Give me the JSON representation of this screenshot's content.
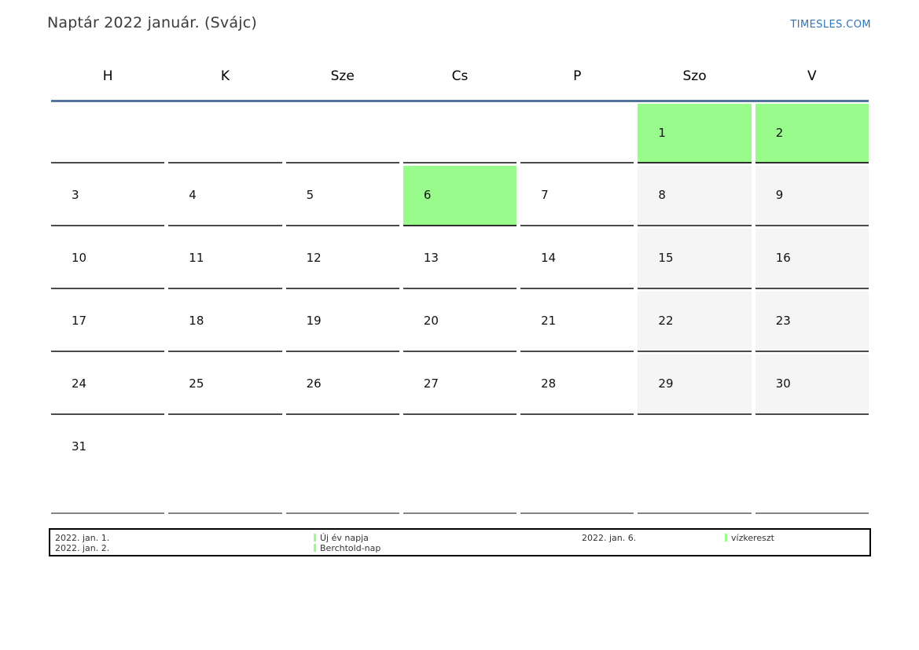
{
  "page": {
    "title": "Naptár 2022 január. (Svájc)",
    "site_link": "TIMESLES.COM"
  },
  "colors": {
    "holiday_green": "#98fb8b",
    "weekend_gray": "#f5f5f5",
    "header_line_blue": "#54739f",
    "link_blue": "#2e75bb"
  },
  "calendar": {
    "day_headers": [
      "H",
      "K",
      "Sze",
      "Cs",
      "P",
      "Szo",
      "V"
    ],
    "weeks": [
      [
        {
          "day": "",
          "type": "empty"
        },
        {
          "day": "",
          "type": "empty"
        },
        {
          "day": "",
          "type": "empty"
        },
        {
          "day": "",
          "type": "empty"
        },
        {
          "day": "",
          "type": "empty"
        },
        {
          "day": "1",
          "type": "holiday"
        },
        {
          "day": "2",
          "type": "holiday"
        }
      ],
      [
        {
          "day": "3",
          "type": "normal"
        },
        {
          "day": "4",
          "type": "normal"
        },
        {
          "day": "5",
          "type": "normal"
        },
        {
          "day": "6",
          "type": "holiday"
        },
        {
          "day": "7",
          "type": "normal"
        },
        {
          "day": "8",
          "type": "weekend"
        },
        {
          "day": "9",
          "type": "weekend"
        }
      ],
      [
        {
          "day": "10",
          "type": "normal"
        },
        {
          "day": "11",
          "type": "normal"
        },
        {
          "day": "12",
          "type": "normal"
        },
        {
          "day": "13",
          "type": "normal"
        },
        {
          "day": "14",
          "type": "normal"
        },
        {
          "day": "15",
          "type": "weekend"
        },
        {
          "day": "16",
          "type": "weekend"
        }
      ],
      [
        {
          "day": "17",
          "type": "normal"
        },
        {
          "day": "18",
          "type": "normal"
        },
        {
          "day": "19",
          "type": "normal"
        },
        {
          "day": "20",
          "type": "normal"
        },
        {
          "day": "21",
          "type": "normal"
        },
        {
          "day": "22",
          "type": "weekend"
        },
        {
          "day": "23",
          "type": "weekend"
        }
      ],
      [
        {
          "day": "24",
          "type": "normal"
        },
        {
          "day": "25",
          "type": "normal"
        },
        {
          "day": "26",
          "type": "normal"
        },
        {
          "day": "27",
          "type": "normal"
        },
        {
          "day": "28",
          "type": "normal"
        },
        {
          "day": "29",
          "type": "weekend"
        },
        {
          "day": "30",
          "type": "weekend"
        }
      ],
      [
        {
          "day": "31",
          "type": "normal"
        },
        {
          "day": "",
          "type": "empty"
        },
        {
          "day": "",
          "type": "empty"
        },
        {
          "day": "",
          "type": "empty"
        },
        {
          "day": "",
          "type": "empty"
        },
        {
          "day": "",
          "type": "empty"
        },
        {
          "day": "",
          "type": "empty"
        }
      ]
    ]
  },
  "legend": {
    "entries": [
      {
        "date": "2022. jan. 1.",
        "name": "Új év napja"
      },
      {
        "date": "2022. jan. 2.",
        "name": "Berchtold-nap"
      },
      {
        "date": "2022. jan. 6.",
        "name": "vízkereszt"
      }
    ]
  }
}
